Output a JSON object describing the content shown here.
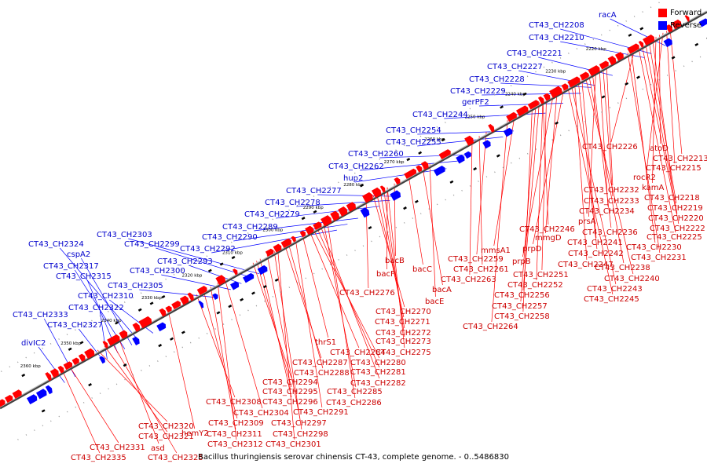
{
  "caption": "Bacillus thuringiensis serovar chinensis CT-43, complete genome. - 0..5486830",
  "legend": {
    "forward_label": "Forward",
    "reverse_label": "Reverse",
    "forward_color": "#ff0000",
    "reverse_color": "#0000ff"
  },
  "colors": {
    "forward_label": "#cc0000",
    "reverse_label": "#0000cc",
    "forward_line": "#ff0000",
    "reverse_line": "#0000ff",
    "backbone": "#808080"
  },
  "ticks": [
    "2220 kbp",
    "2230 kbp",
    "2240 kbp",
    "2250 kbp",
    "2260 kbp",
    "2270 kbp",
    "2280 kbp",
    "2290 kbp",
    "2300 kbp",
    "2310 kbp",
    "2320 kbp",
    "2330 kbp",
    "2340 kbp",
    "2350 kbp",
    "2360 kbp"
  ],
  "reverse_genes": [
    "racA",
    "CT43_CH2208",
    "CT43_CH2210",
    "CT43_CH2221",
    "CT43_CH2227",
    "CT43_CH2228",
    "CT43_CH2229",
    "gerPF2",
    "CT43_CH2244",
    "CT43_CH2254",
    "CT43_CH2255",
    "CT43_CH2260",
    "CT43_CH2262",
    "hup2",
    "CT43_CH2277",
    "CT43_CH2278",
    "CT43_CH2279",
    "CT43_CH2289",
    "CT43_CH2290",
    "CT43_CH2292",
    "CT43_CH2303",
    "CT43_CH2299",
    "CT43_CH2293",
    "CT43_CH2300",
    "CT43_CH2324",
    "cspA2",
    "CT43_CH2317",
    "CT43_CH2315",
    "CT43_CH2305",
    "CT43_CH2310",
    "CT43_CH2322",
    "CT43_CH2333",
    "CT43_CH2327",
    "divIC2"
  ],
  "forward_genes": [
    "atoD",
    "CT43_CH2226",
    "CT43_CH2213",
    "CT43_CH2215",
    "rocR2",
    "kamA",
    "CT43_CH2218",
    "CT43_CH2232",
    "CT43_CH2219",
    "CT43_CH2233",
    "CT43_CH2220",
    "CT43_CH2234",
    "CT43_CH2222",
    "prsA",
    "CT43_CH2225",
    "CT43_CH2236",
    "CT43_CH2230",
    "CT43_CH2231",
    "CT43_CH2246",
    "CT43_CH2241",
    "mmgD",
    "CT43_CH2242",
    "mmsA1",
    "prpD",
    "CT43_CH2238",
    "CT43_CH2259",
    "prpB",
    "CT43_CH2247",
    "CT43_CH2240",
    "CT43_CH2261",
    "CT43_CH2251",
    "CT43_CH2263",
    "CT43_CH2252",
    "CT43_CH2243",
    "bacB",
    "bacC",
    "CT43_CH2245",
    "bacF",
    "CT43_CH2256",
    "bacA",
    "CT43_CH2257",
    "CT43_CH2276",
    "bacE",
    "CT43_CH2258",
    "CT43_CH2270",
    "CT43_CH2264",
    "CT43_CH2271",
    "CT43_CH2272",
    "CT43_CH2273",
    "thrS1",
    "CT43_CH2275",
    "CT43_CH2284",
    "CT43_CH2287",
    "CT43_CH2280",
    "CT43_CH2288",
    "CT43_CH2281",
    "CT43_CH2294",
    "CT43_CH2282",
    "CT43_CH2295",
    "CT43_CH2285",
    "CT43_CH2308",
    "CT43_CH2296",
    "CT43_CH2286",
    "CT43_CH2304",
    "CT43_CH2291",
    "hemY2",
    "CT43_CH2309",
    "CT43_CH2297",
    "CT43_CH2320",
    "CT43_CH2311",
    "CT43_CH2298",
    "CT43_CH2321",
    "CT43_CH2312",
    "CT43_CH2301",
    "asd",
    "CT43_CH2331",
    "CT43_CH2325",
    "CT43_CH2335"
  ]
}
